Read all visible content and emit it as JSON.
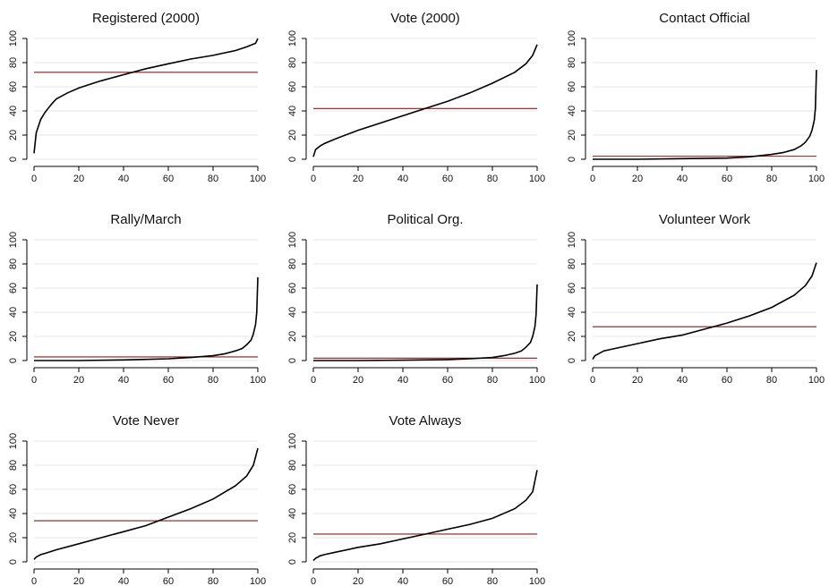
{
  "chart_data": [
    {
      "type": "line",
      "title": "Registered (2000)",
      "xlim": [
        0,
        100
      ],
      "ylim": [
        0,
        100
      ],
      "xticks": [
        0,
        20,
        40,
        60,
        80,
        100
      ],
      "yticks": [
        0,
        20,
        40,
        60,
        80,
        100
      ],
      "grid": true,
      "series": [
        {
          "x": [
            0,
            1,
            3,
            5,
            8,
            10,
            15,
            20,
            25,
            30,
            40,
            50,
            60,
            70,
            80,
            90,
            95,
            99,
            100
          ],
          "values": [
            5,
            22,
            33,
            39,
            46,
            50,
            55,
            59,
            62,
            65,
            70,
            75,
            79,
            83,
            86,
            90,
            93,
            96,
            100
          ],
          "color": "#000000"
        }
      ],
      "reference_line": {
        "y": 72,
        "color": "#8b1a1a"
      }
    },
    {
      "type": "line",
      "title": "Vote (2000)",
      "xlim": [
        0,
        100
      ],
      "ylim": [
        0,
        100
      ],
      "xticks": [
        0,
        20,
        40,
        60,
        80,
        100
      ],
      "yticks": [
        0,
        20,
        40,
        60,
        80,
        100
      ],
      "grid": true,
      "series": [
        {
          "x": [
            0,
            1,
            3,
            5,
            10,
            20,
            30,
            40,
            50,
            60,
            70,
            80,
            90,
            95,
            98,
            100
          ],
          "values": [
            2,
            8,
            11,
            13,
            17,
            24,
            30,
            36,
            42,
            48,
            55,
            63,
            72,
            79,
            86,
            95
          ],
          "color": "#000000"
        }
      ],
      "reference_line": {
        "y": 42,
        "color": "#8b1a1a"
      }
    },
    {
      "type": "line",
      "title": "Contact Official",
      "xlim": [
        0,
        100
      ],
      "ylim": [
        0,
        100
      ],
      "xticks": [
        0,
        20,
        40,
        60,
        80,
        100
      ],
      "yticks": [
        0,
        20,
        40,
        60,
        80,
        100
      ],
      "grid": true,
      "series": [
        {
          "x": [
            0,
            20,
            40,
            60,
            70,
            80,
            85,
            90,
            93,
            95,
            97,
            98,
            99,
            99.5,
            100
          ],
          "values": [
            0,
            0,
            0.5,
            1,
            2,
            4,
            5.5,
            8,
            11,
            14,
            19,
            24,
            32,
            42,
            74
          ],
          "color": "#000000"
        }
      ],
      "reference_line": {
        "y": 2.5,
        "color": "#8b1a1a"
      }
    },
    {
      "type": "line",
      "title": "Rally/March",
      "xlim": [
        0,
        100
      ],
      "ylim": [
        0,
        100
      ],
      "xticks": [
        0,
        20,
        40,
        60,
        80,
        100
      ],
      "yticks": [
        0,
        20,
        40,
        60,
        80,
        100
      ],
      "grid": true,
      "series": [
        {
          "x": [
            0,
            20,
            40,
            60,
            70,
            80,
            85,
            90,
            93,
            95,
            97,
            98,
            99,
            99.5,
            100
          ],
          "values": [
            0,
            0,
            0.5,
            1.5,
            2.5,
            4,
            5.5,
            8,
            10,
            13,
            17,
            22,
            30,
            40,
            69
          ],
          "color": "#000000"
        }
      ],
      "reference_line": {
        "y": 3,
        "color": "#8b1a1a"
      }
    },
    {
      "type": "line",
      "title": "Political Org.",
      "xlim": [
        0,
        100
      ],
      "ylim": [
        0,
        100
      ],
      "xticks": [
        0,
        20,
        40,
        60,
        80,
        100
      ],
      "yticks": [
        0,
        20,
        40,
        60,
        80,
        100
      ],
      "grid": true,
      "series": [
        {
          "x": [
            0,
            20,
            40,
            60,
            70,
            80,
            85,
            90,
            93,
            95,
            97,
            98,
            99,
            99.5,
            100
          ],
          "values": [
            0,
            0,
            0.3,
            0.8,
            1.5,
            2.5,
            4,
            6,
            8,
            11,
            15,
            20,
            28,
            38,
            63
          ],
          "color": "#000000"
        }
      ],
      "reference_line": {
        "y": 2,
        "color": "#8b1a1a"
      }
    },
    {
      "type": "line",
      "title": "Volunteer Work",
      "xlim": [
        0,
        100
      ],
      "ylim": [
        0,
        100
      ],
      "xticks": [
        0,
        20,
        40,
        60,
        80,
        100
      ],
      "yticks": [
        0,
        20,
        40,
        60,
        80,
        100
      ],
      "grid": true,
      "series": [
        {
          "x": [
            0,
            1,
            3,
            5,
            10,
            20,
            30,
            40,
            50,
            60,
            70,
            80,
            90,
            95,
            98,
            100
          ],
          "values": [
            1,
            4,
            6,
            8,
            10,
            14,
            18,
            21,
            26,
            31,
            37,
            44,
            54,
            62,
            70,
            81
          ],
          "color": "#000000"
        }
      ],
      "reference_line": {
        "y": 28,
        "color": "#8b1a1a"
      }
    },
    {
      "type": "line",
      "title": "Vote Never",
      "xlim": [
        0,
        100
      ],
      "ylim": [
        0,
        100
      ],
      "xticks": [
        0,
        20,
        40,
        60,
        80,
        100
      ],
      "yticks": [
        0,
        20,
        40,
        60,
        80,
        100
      ],
      "grid": true,
      "series": [
        {
          "x": [
            0,
            1,
            3,
            5,
            10,
            20,
            30,
            40,
            50,
            60,
            70,
            80,
            90,
            95,
            98,
            100
          ],
          "values": [
            2,
            4,
            6,
            7,
            10,
            15,
            20,
            25,
            30,
            37,
            44,
            52,
            63,
            71,
            80,
            94
          ],
          "color": "#000000"
        }
      ],
      "reference_line": {
        "y": 34,
        "color": "#8b1a1a"
      }
    },
    {
      "type": "line",
      "title": "Vote Always",
      "xlim": [
        0,
        100
      ],
      "ylim": [
        0,
        100
      ],
      "xticks": [
        0,
        20,
        40,
        60,
        80,
        100
      ],
      "yticks": [
        0,
        20,
        40,
        60,
        80,
        100
      ],
      "grid": true,
      "series": [
        {
          "x": [
            0,
            1,
            3,
            5,
            10,
            20,
            30,
            40,
            50,
            60,
            70,
            80,
            90,
            95,
            98,
            100
          ],
          "values": [
            1,
            3,
            5,
            6,
            8,
            12,
            15,
            19,
            23,
            27,
            31,
            36,
            44,
            51,
            58,
            76
          ],
          "color": "#000000"
        }
      ],
      "reference_line": {
        "y": 23,
        "color": "#8b1a1a"
      }
    }
  ]
}
